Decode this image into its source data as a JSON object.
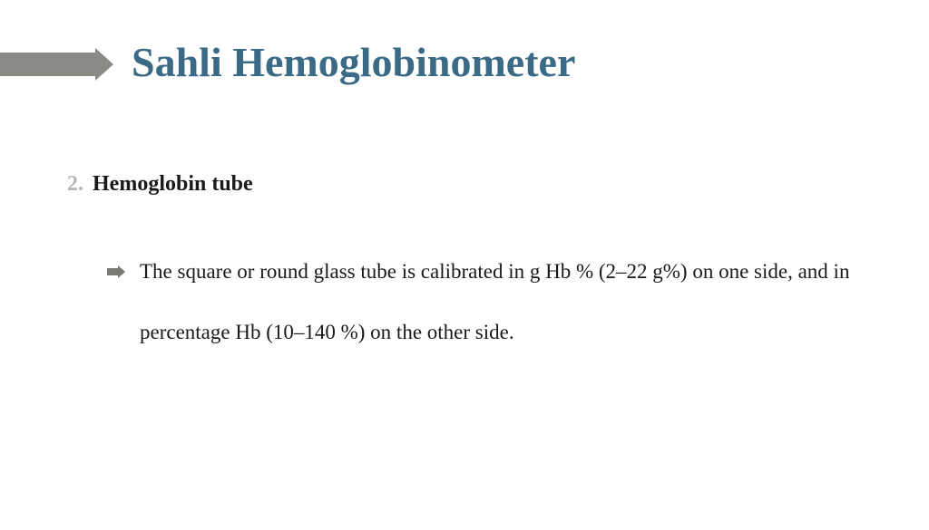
{
  "slide": {
    "title": "Sahli Hemoglobinometer",
    "title_color": "#3a6a85",
    "title_fontsize": 46,
    "accent_bar_color": "#8b8b85",
    "background_color": "#ffffff",
    "list": {
      "number": "2.",
      "number_color": "#b8b8b2",
      "heading": "Hemoglobin tube",
      "heading_color": "#1a1a1a",
      "heading_fontsize": 24,
      "sub_bullet_color": "#7a7a74",
      "sub_text": "The square or round glass tube is calibrated in g Hb % (2–22 g%) on one side, and in percentage Hb (10–140 %) on the other side.",
      "sub_text_color": "#1a1a1a",
      "sub_text_fontsize": 23
    }
  }
}
